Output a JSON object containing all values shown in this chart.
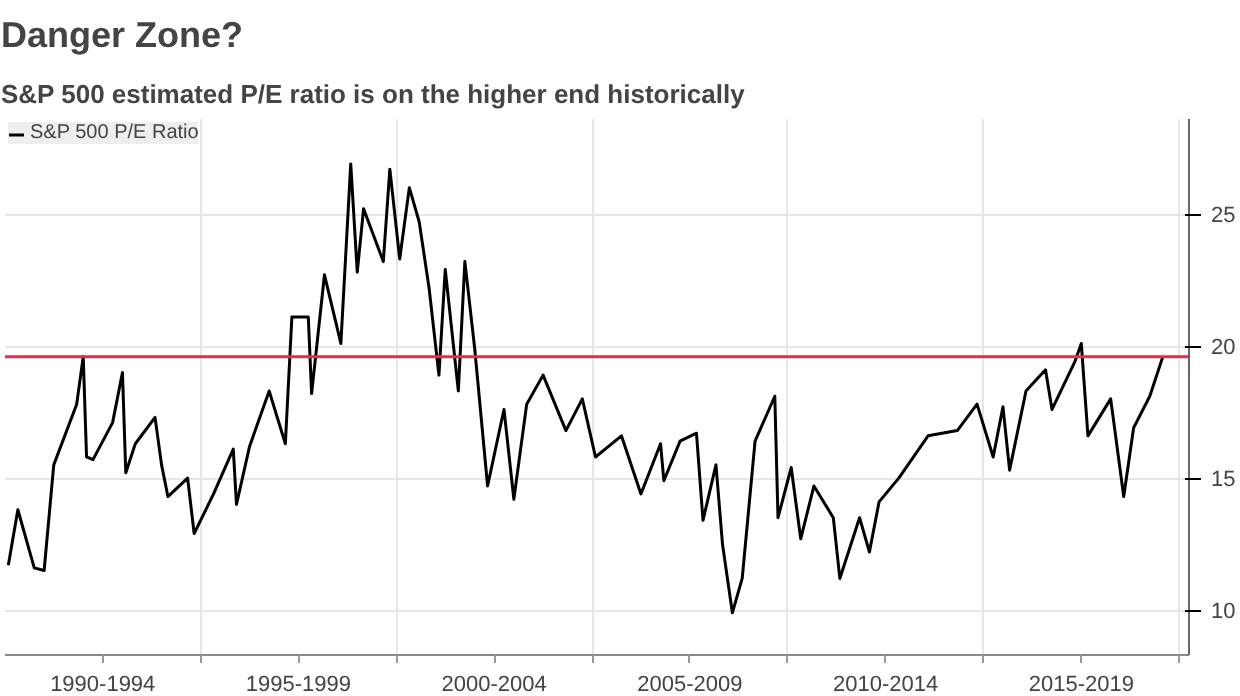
{
  "chart_data": {
    "type": "line",
    "title": "Danger Zone?",
    "subtitle": "S&P 500 estimated P/E ratio is on the higher end historically",
    "x": [
      "1990-02",
      "1990-05",
      "1990-10",
      "1991-01",
      "1991-04",
      "1991-11",
      "1992-01",
      "1992-02",
      "1992-04",
      "1992-10",
      "1993-01",
      "1993-02",
      "1993-05",
      "1993-11",
      "1994-01",
      "1994-03",
      "1994-09",
      "1994-11",
      "1995-05",
      "1995-11",
      "1995-12",
      "1996-04",
      "1996-10",
      "1997-03",
      "1997-05",
      "1997-10",
      "1997-11",
      "1998-03",
      "1998-08",
      "1998-11",
      "1999-01",
      "1999-03",
      "1999-09",
      "1999-11",
      "2000-02",
      "2000-05",
      "2000-08",
      "2000-11",
      "2001-02",
      "2001-04",
      "2001-08",
      "2001-10",
      "2002-01",
      "2002-05",
      "2002-10",
      "2003-01",
      "2003-05",
      "2003-10",
      "2004-05",
      "2004-10",
      "2005-02",
      "2005-10",
      "2006-04",
      "2006-10",
      "2006-11",
      "2007-04",
      "2007-09",
      "2007-11",
      "2008-03",
      "2008-05",
      "2008-08",
      "2008-11",
      "2009-03",
      "2009-09",
      "2009-10",
      "2010-02",
      "2010-05",
      "2010-09",
      "2011-03",
      "2011-05",
      "2011-11",
      "2012-02",
      "2012-05",
      "2012-11",
      "2013-08",
      "2014-05",
      "2014-11",
      "2015-04",
      "2015-07",
      "2015-09",
      "2016-02",
      "2016-08",
      "2016-10",
      "2017-05",
      "2017-07",
      "2017-09",
      "2018-04",
      "2018-08",
      "2018-11",
      "2019-04",
      "2019-08"
    ],
    "series": [
      {
        "name": "S&P 500 P/E Ratio",
        "color": "#000000",
        "values": [
          11.7,
          13.8,
          11.6,
          11.5,
          15.5,
          17.8,
          19.6,
          15.8,
          15.7,
          17.1,
          19.0,
          15.2,
          16.3,
          17.3,
          15.5,
          14.3,
          15.0,
          12.9,
          14.4,
          16.1,
          14.0,
          16.2,
          18.3,
          16.3,
          21.1,
          21.1,
          18.2,
          22.7,
          20.1,
          26.9,
          22.8,
          25.2,
          23.2,
          26.7,
          23.3,
          26.0,
          24.7,
          22.2,
          18.9,
          22.9,
          18.3,
          23.2,
          19.9,
          14.7,
          17.6,
          14.2,
          17.8,
          18.9,
          16.8,
          18.0,
          15.8,
          16.6,
          14.4,
          16.3,
          14.9,
          16.4,
          16.7,
          13.4,
          15.5,
          12.5,
          9.9,
          11.2,
          16.4,
          18.1,
          13.5,
          15.4,
          12.7,
          14.7,
          13.5,
          11.2,
          13.5,
          12.2,
          14.1,
          15.0,
          16.6,
          16.8,
          17.8,
          15.8,
          17.7,
          15.3,
          18.3,
          19.1,
          17.6,
          19.4,
          20.1,
          16.6,
          18.0,
          14.3,
          16.9,
          18.1,
          19.6
        ]
      }
    ],
    "xlim": [
      "1990-01",
      "2020-04"
    ],
    "xticks": [
      {
        "value": "1992-07",
        "label": "1990-1994"
      },
      {
        "value": "1995-01",
        "label": null
      },
      {
        "value": "1997-07",
        "label": "1995-1999"
      },
      {
        "value": "2000-01",
        "label": null
      },
      {
        "value": "2002-07",
        "label": "2000-2004"
      },
      {
        "value": "2005-01",
        "label": null
      },
      {
        "value": "2007-07",
        "label": "2005-2009"
      },
      {
        "value": "2010-01",
        "label": null
      },
      {
        "value": "2012-07",
        "label": "2010-2014"
      },
      {
        "value": "2015-01",
        "label": null
      },
      {
        "value": "2017-07",
        "label": "2015-2019"
      },
      {
        "value": "2020-01",
        "label": null
      }
    ],
    "ylim": [
      8.3,
      28.6
    ],
    "yticks": [
      10,
      15,
      20,
      25
    ],
    "ref_lines": [
      {
        "axis": "y",
        "value": 19.6,
        "color": "#d9304f"
      }
    ],
    "grid": true,
    "legend": "top left",
    "line_style": "solid"
  }
}
